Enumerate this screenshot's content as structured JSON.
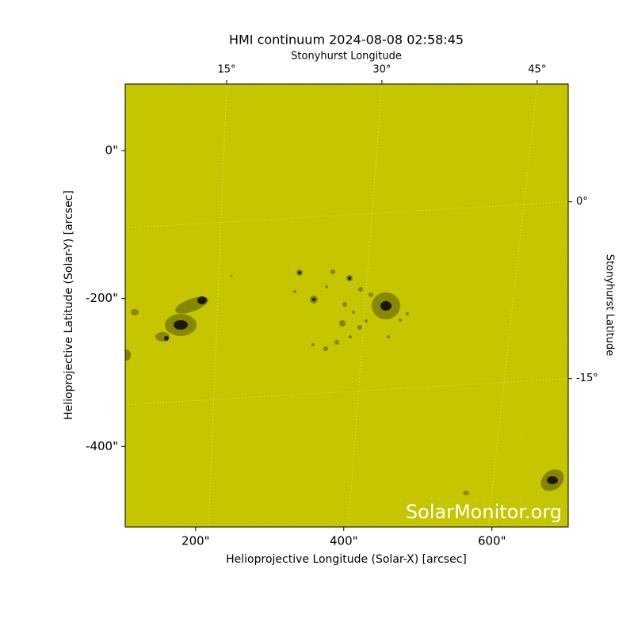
{
  "chart_data": {
    "type": "image",
    "title": "HMI continuum 2024-08-08 02:58:45",
    "xlabel": "Helioprojective Longitude (Solar-X) [arcsec]",
    "ylabel": "Helioprojective Latitude (Solar-Y) [arcsec]",
    "x2label": "Stonyhurst Longitude",
    "y2label": "Stonyhurst Latitude",
    "watermark": "SolarMonitor.org",
    "color": "#cccc00",
    "grid": true,
    "xlim": [
      105,
      703
    ],
    "ylim": [
      -509,
      90
    ],
    "xticks": [
      {
        "value": 200,
        "label": "200\""
      },
      {
        "value": 400,
        "label": "400\""
      },
      {
        "value": 600,
        "label": "600\""
      }
    ],
    "yticks": [
      {
        "value": 0,
        "label": "0\""
      },
      {
        "value": -200,
        "label": "-200\""
      },
      {
        "value": -400,
        "label": "-400\""
      }
    ],
    "x2lim": [
      5.2,
      48.0
    ],
    "x2ticks": [
      {
        "value": 15,
        "label": "15°"
      },
      {
        "value": 30,
        "label": "30°"
      },
      {
        "value": 45,
        "label": "45°"
      }
    ],
    "y2lim": [
      -27.6,
      10.0
    ],
    "y2ticks": [
      {
        "value": 0,
        "label": "0°"
      },
      {
        "value": -15,
        "label": "-15°"
      }
    ]
  }
}
